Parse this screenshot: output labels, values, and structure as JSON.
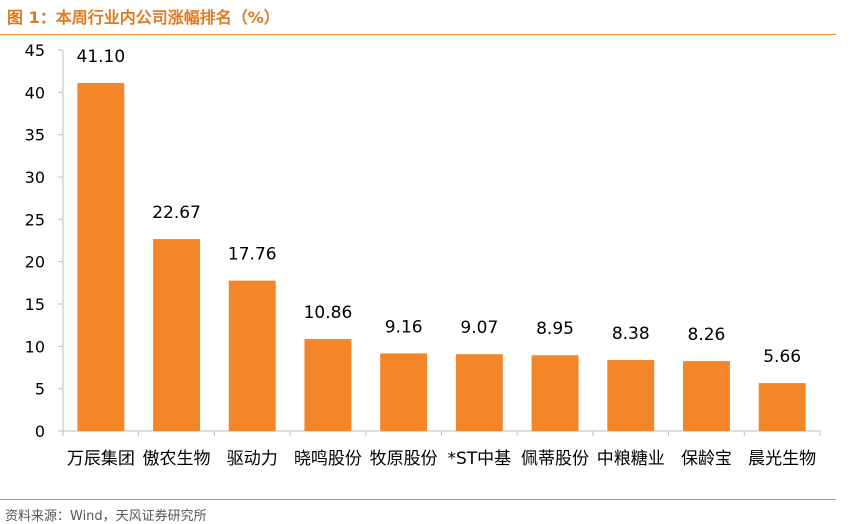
{
  "figure": {
    "title": "图 1：本周行业内公司涨幅排名（%）",
    "source": "资料来源：Wind，天风证券研究所"
  },
  "colors": {
    "bar": "#F4862A",
    "accent": "#E07A1F",
    "rule": "#F08C2E",
    "axis": "#BFBFBF",
    "text": "#000000"
  },
  "chart_data": {
    "type": "bar",
    "title": "本周行业内公司涨幅排名（%）",
    "xlabel": "",
    "ylabel": "",
    "categories": [
      "万辰集团",
      "傲农生物",
      "驱动力",
      "晓鸣股份",
      "牧原股份",
      "*ST中基",
      "佩蒂股份",
      "中粮糖业",
      "保龄宝",
      "晨光生物"
    ],
    "values": [
      41.1,
      22.67,
      17.76,
      10.86,
      9.16,
      9.07,
      8.95,
      8.38,
      8.26,
      5.66
    ],
    "data_labels": [
      "41.10",
      "22.67",
      "17.76",
      "10.86",
      "9.16",
      "9.07",
      "8.95",
      "8.38",
      "8.26",
      "5.66"
    ],
    "ylim": [
      0,
      45
    ],
    "yticks": [
      0,
      5,
      10,
      15,
      20,
      25,
      30,
      35,
      40,
      45
    ],
    "grid": false,
    "legend": "none"
  }
}
